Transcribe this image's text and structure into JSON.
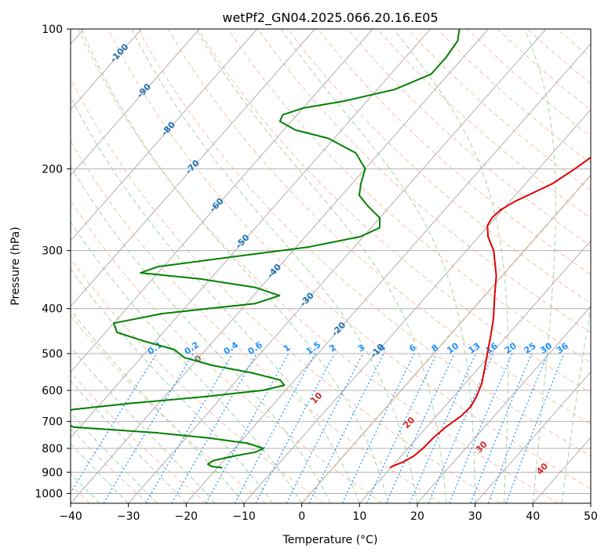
{
  "chart_data": {
    "type": "skew-t",
    "title": "wetPf2_GN04.2025.066.20.16.E05",
    "xlabel": "Temperature (°C)",
    "ylabel": "Pressure (hPa)",
    "xlim": [
      -40,
      50
    ],
    "ylim": [
      1050,
      100
    ],
    "y_scale": "log",
    "grid": true,
    "x_ticks": [
      -40,
      -30,
      -20,
      -10,
      0,
      10,
      20,
      30,
      40,
      50
    ],
    "y_ticks": [
      100,
      200,
      300,
      400,
      500,
      600,
      700,
      800,
      900,
      1000
    ],
    "colors": {
      "temperature": "#e00000",
      "dewpoint": "#008000",
      "isotherm_label": "#1f6fb4",
      "mixing_ratio": "#1e90ff",
      "moist_adiabat_label": "#d62728",
      "dry_adiabat": "#f4a582",
      "moist_adiabat": "#8fc98f",
      "grid": "#b0b0b0"
    },
    "isotherm_labels": [
      {
        "text": "-100",
        "t": -100,
        "p": 112
      },
      {
        "text": "-90",
        "t": -90,
        "p": 135
      },
      {
        "text": "-80",
        "t": -80,
        "p": 163
      },
      {
        "text": "-70",
        "t": -70,
        "p": 197
      },
      {
        "text": "-60",
        "t": -60,
        "p": 238
      },
      {
        "text": "-50",
        "t": -50,
        "p": 285
      },
      {
        "text": "-40",
        "t": -40,
        "p": 330
      },
      {
        "text": "-30",
        "t": -30,
        "p": 380
      },
      {
        "text": "-20",
        "t": -20,
        "p": 440
      },
      {
        "text": "-10",
        "t": -10,
        "p": 490
      }
    ],
    "mixing_ratio_labels": [
      "0.1",
      "0.2",
      "0.4",
      "0.6",
      "1",
      "1.5",
      "2",
      "3",
      "4",
      "6",
      "8",
      "10",
      "13",
      "16",
      "20",
      "25",
      "30",
      "36"
    ],
    "mixing_ratio_values": [
      0.1,
      0.2,
      0.4,
      0.6,
      1,
      1.5,
      2,
      3,
      4,
      6,
      8,
      10,
      13,
      16,
      20,
      25,
      30,
      36
    ],
    "moist_adiabat_labels": [
      {
        "text": "0",
        "t": 0
      },
      {
        "text": "10",
        "t": 10
      },
      {
        "text": "20",
        "t": 20
      },
      {
        "text": "30",
        "t": 30
      },
      {
        "text": "40",
        "t": 40
      }
    ],
    "series": [
      {
        "name": "Temperature",
        "points": [
          {
            "p": 880,
            "t": 9.8
          },
          {
            "p": 870,
            "t": 10.3
          },
          {
            "p": 855,
            "t": 11.3
          },
          {
            "p": 830,
            "t": 12.2
          },
          {
            "p": 800,
            "t": 12.6
          },
          {
            "p": 760,
            "t": 12.8
          },
          {
            "p": 720,
            "t": 13.3
          },
          {
            "p": 680,
            "t": 14.3
          },
          {
            "p": 650,
            "t": 14.5
          },
          {
            "p": 620,
            "t": 14.0
          },
          {
            "p": 580,
            "t": 12.9
          },
          {
            "p": 540,
            "t": 11.2
          },
          {
            "p": 500,
            "t": 9.3
          },
          {
            "p": 460,
            "t": 7.3
          },
          {
            "p": 420,
            "t": 5.0
          },
          {
            "p": 380,
            "t": 2.1
          },
          {
            "p": 340,
            "t": -1.0
          },
          {
            "p": 300,
            "t": -5.3
          },
          {
            "p": 280,
            "t": -8.4
          },
          {
            "p": 265,
            "t": -10.2
          },
          {
            "p": 255,
            "t": -10.6
          },
          {
            "p": 245,
            "t": -10.3
          },
          {
            "p": 235,
            "t": -9.1
          },
          {
            "p": 225,
            "t": -7.2
          },
          {
            "p": 215,
            "t": -5.3
          },
          {
            "p": 200,
            "t": -3.7
          },
          {
            "p": 185,
            "t": -2.3
          },
          {
            "p": 170,
            "t": -0.8
          },
          {
            "p": 160,
            "t": 0.4
          },
          {
            "p": 150,
            "t": 1.1
          },
          {
            "p": 140,
            "t": 1.3
          },
          {
            "p": 130,
            "t": 1.9
          },
          {
            "p": 123,
            "t": 1.8
          },
          {
            "p": 115,
            "t": 0.3
          },
          {
            "p": 108,
            "t": -0.2
          },
          {
            "p": 100,
            "t": 0.4
          }
        ]
      },
      {
        "name": "Dewpoint",
        "points": [
          {
            "p": 880,
            "t": -19.2
          },
          {
            "p": 875,
            "t": -21.2
          },
          {
            "p": 865,
            "t": -22.2
          },
          {
            "p": 850,
            "t": -21.8
          },
          {
            "p": 830,
            "t": -18.8
          },
          {
            "p": 815,
            "t": -15.8
          },
          {
            "p": 800,
            "t": -15.0
          },
          {
            "p": 780,
            "t": -18.5
          },
          {
            "p": 760,
            "t": -26.0
          },
          {
            "p": 740,
            "t": -36.0
          },
          {
            "p": 720,
            "t": -51.0
          },
          {
            "p": 690,
            "t": -56.0
          },
          {
            "p": 660,
            "t": -54.0
          },
          {
            "p": 640,
            "t": -45.0
          },
          {
            "p": 620,
            "t": -33.5
          },
          {
            "p": 600,
            "t": -24.0
          },
          {
            "p": 585,
            "t": -21.0
          },
          {
            "p": 570,
            "t": -22.5
          },
          {
            "p": 550,
            "t": -28.5
          },
          {
            "p": 530,
            "t": -36.5
          },
          {
            "p": 510,
            "t": -42.5
          },
          {
            "p": 490,
            "t": -45.5
          },
          {
            "p": 470,
            "t": -52.0
          },
          {
            "p": 450,
            "t": -58.0
          },
          {
            "p": 430,
            "t": -60.0
          },
          {
            "p": 410,
            "t": -53.0
          },
          {
            "p": 390,
            "t": -38.5
          },
          {
            "p": 375,
            "t": -35.5
          },
          {
            "p": 360,
            "t": -41.0
          },
          {
            "p": 345,
            "t": -52.0
          },
          {
            "p": 335,
            "t": -63.0
          },
          {
            "p": 325,
            "t": -61.0
          },
          {
            "p": 310,
            "t": -50.0
          },
          {
            "p": 295,
            "t": -38.0
          },
          {
            "p": 280,
            "t": -30.5
          },
          {
            "p": 268,
            "t": -28.5
          },
          {
            "p": 255,
            "t": -30.0
          },
          {
            "p": 240,
            "t": -34.0
          },
          {
            "p": 228,
            "t": -37.0
          },
          {
            "p": 215,
            "t": -38.5
          },
          {
            "p": 200,
            "t": -40.0
          },
          {
            "p": 185,
            "t": -44.0
          },
          {
            "p": 172,
            "t": -51.0
          },
          {
            "p": 165,
            "t": -58.0
          },
          {
            "p": 158,
            "t": -62.0
          },
          {
            "p": 153,
            "t": -62.5
          },
          {
            "p": 148,
            "t": -60.0
          },
          {
            "p": 143,
            "t": -54.0
          },
          {
            "p": 135,
            "t": -47.0
          },
          {
            "p": 125,
            "t": -43.0
          },
          {
            "p": 115,
            "t": -43.0
          },
          {
            "p": 106,
            "t": -43.5
          },
          {
            "p": 100,
            "t": -45.0
          }
        ]
      }
    ]
  }
}
